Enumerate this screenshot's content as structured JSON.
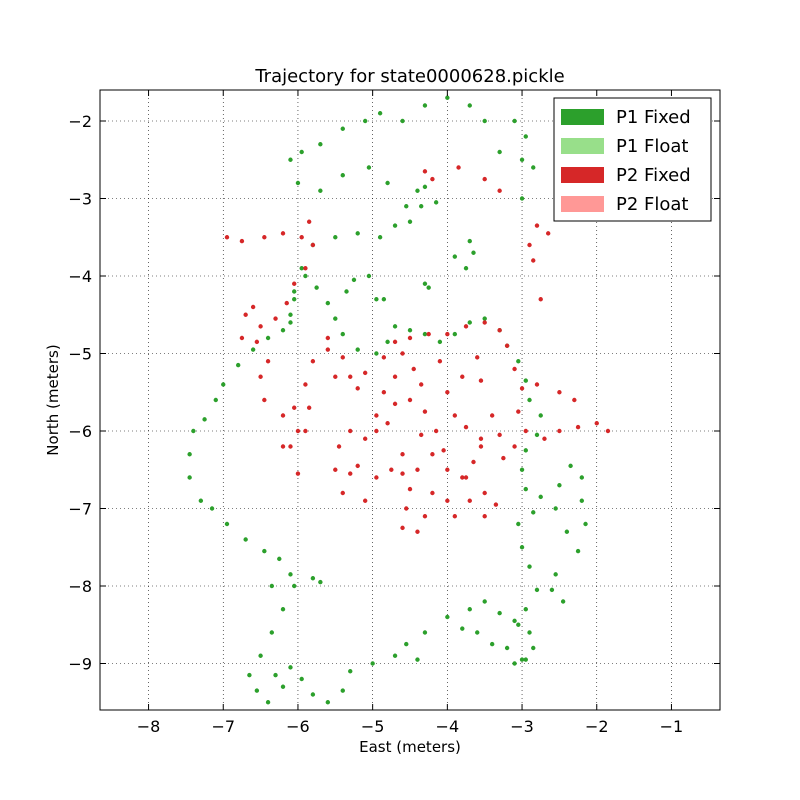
{
  "chart_data": {
    "type": "scatter",
    "title": "Trajectory for state0000628.pickle",
    "xlabel": "East (meters)",
    "ylabel": "North (meters)",
    "xlim": [
      -8.65,
      -0.35
    ],
    "ylim": [
      -9.6,
      -1.6
    ],
    "xticks": [
      -8,
      -7,
      -6,
      -5,
      -4,
      -3,
      -2,
      -1
    ],
    "yticks": [
      -2,
      -3,
      -4,
      -5,
      -6,
      -7,
      -8,
      -9
    ],
    "xtick_labels": [
      "−8",
      "−7",
      "−6",
      "−5",
      "−4",
      "−3",
      "−2",
      "−1"
    ],
    "ytick_labels": [
      "−2",
      "−3",
      "−4",
      "−5",
      "−6",
      "−7",
      "−8",
      "−9"
    ],
    "grid": true,
    "legend_position": "top-right",
    "legend": [
      {
        "label": "P1 Fixed",
        "color": "#2ca02c"
      },
      {
        "label": "P1 Float",
        "color": "#98df8a"
      },
      {
        "label": "P2 Fixed",
        "color": "#d62728"
      },
      {
        "label": "P2 Float",
        "color": "#ff9896"
      }
    ],
    "series": [
      {
        "name": "P1 Fixed",
        "color": "#2ca02c",
        "points": [
          [
            -3.3,
            -2.4
          ],
          [
            -3.0,
            -2.5
          ],
          [
            -2.95,
            -2.2
          ],
          [
            -3.1,
            -2.0
          ],
          [
            -3.5,
            -2.0
          ],
          [
            -3.7,
            -1.8
          ],
          [
            -4.0,
            -1.7
          ],
          [
            -4.3,
            -1.8
          ],
          [
            -4.6,
            -2.0
          ],
          [
            -4.9,
            -1.9
          ],
          [
            -5.1,
            -2.0
          ],
          [
            -5.4,
            -2.1
          ],
          [
            -5.7,
            -2.3
          ],
          [
            -5.95,
            -2.4
          ],
          [
            -6.1,
            -2.5
          ],
          [
            -6.0,
            -2.8
          ],
          [
            -5.7,
            -2.9
          ],
          [
            -5.4,
            -2.7
          ],
          [
            -5.05,
            -2.6
          ],
          [
            -4.8,
            -2.8
          ],
          [
            -4.55,
            -3.1
          ],
          [
            -4.4,
            -2.9
          ],
          [
            -4.3,
            -2.85
          ],
          [
            -4.15,
            -3.05
          ],
          [
            -4.35,
            -3.1
          ],
          [
            -4.5,
            -3.3
          ],
          [
            -4.7,
            -3.35
          ],
          [
            -4.9,
            -3.5
          ],
          [
            -5.2,
            -3.45
          ],
          [
            -5.5,
            -3.5
          ],
          [
            -5.8,
            -3.6
          ],
          [
            -5.95,
            -3.9
          ],
          [
            -6.05,
            -4.3
          ],
          [
            -6.1,
            -4.5
          ],
          [
            -6.2,
            -4.7
          ],
          [
            -6.4,
            -4.8
          ],
          [
            -6.6,
            -4.95
          ],
          [
            -6.8,
            -5.15
          ],
          [
            -7.0,
            -5.4
          ],
          [
            -7.1,
            -5.6
          ],
          [
            -7.25,
            -5.85
          ],
          [
            -7.4,
            -6.0
          ],
          [
            -7.45,
            -6.3
          ],
          [
            -7.45,
            -6.6
          ],
          [
            -7.3,
            -6.9
          ],
          [
            -7.15,
            -7.0
          ],
          [
            -6.95,
            -7.2
          ],
          [
            -6.7,
            -7.4
          ],
          [
            -6.45,
            -7.55
          ],
          [
            -6.25,
            -7.65
          ],
          [
            -6.1,
            -7.85
          ],
          [
            -6.05,
            -8.0
          ],
          [
            -6.2,
            -8.3
          ],
          [
            -6.35,
            -8.6
          ],
          [
            -6.5,
            -8.9
          ],
          [
            -6.65,
            -9.15
          ],
          [
            -6.55,
            -9.35
          ],
          [
            -6.4,
            -9.5
          ],
          [
            -6.2,
            -9.3
          ],
          [
            -6.3,
            -9.15
          ],
          [
            -6.1,
            -9.05
          ],
          [
            -5.95,
            -9.2
          ],
          [
            -5.8,
            -9.4
          ],
          [
            -5.6,
            -9.5
          ],
          [
            -5.4,
            -9.35
          ],
          [
            -5.3,
            -9.1
          ],
          [
            -5.0,
            -9.0
          ],
          [
            -4.7,
            -8.9
          ],
          [
            -4.55,
            -8.75
          ],
          [
            -4.3,
            -8.6
          ],
          [
            -4.0,
            -8.4
          ],
          [
            -3.7,
            -8.3
          ],
          [
            -3.5,
            -8.2
          ],
          [
            -3.3,
            -8.35
          ],
          [
            -3.1,
            -8.45
          ],
          [
            -2.9,
            -8.6
          ],
          [
            -2.85,
            -8.8
          ],
          [
            -3.0,
            -8.95
          ],
          [
            -3.2,
            -8.8
          ],
          [
            -3.05,
            -8.5
          ],
          [
            -2.95,
            -8.3
          ],
          [
            -2.8,
            -8.05
          ],
          [
            -2.6,
            -8.05
          ],
          [
            -2.45,
            -8.2
          ],
          [
            -2.55,
            -7.85
          ],
          [
            -2.9,
            -7.75
          ],
          [
            -3.0,
            -7.5
          ],
          [
            -3.05,
            -7.2
          ],
          [
            -2.85,
            -7.05
          ],
          [
            -2.55,
            -7.0
          ],
          [
            -2.4,
            -7.3
          ],
          [
            -2.25,
            -7.55
          ],
          [
            -2.15,
            -7.2
          ],
          [
            -2.2,
            -6.9
          ],
          [
            -2.2,
            -6.6
          ],
          [
            -2.35,
            -6.45
          ],
          [
            -2.5,
            -6.7
          ],
          [
            -2.75,
            -6.85
          ],
          [
            -2.95,
            -6.75
          ],
          [
            -3.0,
            -6.5
          ],
          [
            -2.95,
            -6.25
          ],
          [
            -2.8,
            -6.05
          ],
          [
            -2.75,
            -5.8
          ],
          [
            -2.9,
            -5.6
          ],
          [
            -2.95,
            -5.35
          ],
          [
            -3.05,
            -5.1
          ],
          [
            -3.2,
            -4.9
          ],
          [
            -3.3,
            -4.7
          ],
          [
            -3.5,
            -4.55
          ],
          [
            -3.7,
            -4.6
          ],
          [
            -3.9,
            -4.75
          ],
          [
            -4.1,
            -4.85
          ],
          [
            -4.3,
            -4.75
          ],
          [
            -4.5,
            -4.7
          ],
          [
            -4.7,
            -4.65
          ],
          [
            -4.8,
            -4.85
          ],
          [
            -4.95,
            -5.0
          ],
          [
            -5.2,
            -4.95
          ],
          [
            -5.4,
            -4.75
          ],
          [
            -5.5,
            -4.55
          ],
          [
            -5.6,
            -4.35
          ],
          [
            -5.75,
            -4.15
          ],
          [
            -5.9,
            -4.0
          ],
          [
            -6.05,
            -4.2
          ],
          [
            -6.1,
            -4.6
          ],
          [
            -5.35,
            -4.2
          ],
          [
            -5.25,
            -4.05
          ],
          [
            -5.05,
            -4.0
          ],
          [
            -4.95,
            -4.3
          ],
          [
            -4.85,
            -4.3
          ],
          [
            -4.3,
            -4.1
          ],
          [
            -4.25,
            -4.15
          ],
          [
            -3.7,
            -3.55
          ],
          [
            -3.65,
            -3.7
          ],
          [
            -3.75,
            -3.9
          ],
          [
            -3.9,
            -3.75
          ],
          [
            -6.35,
            -8.0
          ],
          [
            -5.8,
            -7.9
          ],
          [
            -5.7,
            -7.95
          ],
          [
            -4.4,
            -8.95
          ],
          [
            -3.8,
            -8.55
          ],
          [
            -3.6,
            -8.6
          ],
          [
            -3.4,
            -8.75
          ],
          [
            -3.1,
            -9.0
          ],
          [
            -2.95,
            -8.95
          ],
          [
            -3.0,
            -3.0
          ],
          [
            -2.85,
            -2.6
          ]
        ]
      },
      {
        "name": "P2 Fixed",
        "color": "#d62728",
        "points": [
          [
            -6.95,
            -3.5
          ],
          [
            -6.75,
            -3.55
          ],
          [
            -6.45,
            -3.5
          ],
          [
            -6.2,
            -3.45
          ],
          [
            -5.95,
            -3.5
          ],
          [
            -5.85,
            -3.3
          ],
          [
            -5.8,
            -3.6
          ],
          [
            -5.9,
            -3.9
          ],
          [
            -6.05,
            -4.1
          ],
          [
            -6.15,
            -4.35
          ],
          [
            -6.3,
            -4.55
          ],
          [
            -6.5,
            -4.65
          ],
          [
            -6.6,
            -4.4
          ],
          [
            -6.7,
            -4.5
          ],
          [
            -6.75,
            -4.8
          ],
          [
            -6.55,
            -4.85
          ],
          [
            -6.4,
            -5.1
          ],
          [
            -6.5,
            -5.3
          ],
          [
            -6.45,
            -5.6
          ],
          [
            -6.2,
            -5.8
          ],
          [
            -6.05,
            -5.7
          ],
          [
            -5.9,
            -5.4
          ],
          [
            -5.8,
            -5.1
          ],
          [
            -5.6,
            -4.95
          ],
          [
            -5.4,
            -5.05
          ],
          [
            -5.3,
            -5.3
          ],
          [
            -5.1,
            -5.25
          ],
          [
            -4.85,
            -5.05
          ],
          [
            -4.7,
            -4.85
          ],
          [
            -4.5,
            -4.8
          ],
          [
            -4.25,
            -4.75
          ],
          [
            -4.0,
            -4.75
          ],
          [
            -3.75,
            -4.65
          ],
          [
            -3.5,
            -4.6
          ],
          [
            -3.3,
            -4.7
          ],
          [
            -3.2,
            -4.9
          ],
          [
            -3.1,
            -5.2
          ],
          [
            -3.0,
            -5.45
          ],
          [
            -3.05,
            -5.75
          ],
          [
            -2.95,
            -6.0
          ],
          [
            -2.7,
            -6.1
          ],
          [
            -2.5,
            -6.0
          ],
          [
            -2.25,
            -5.95
          ],
          [
            -2.0,
            -5.9
          ],
          [
            -1.85,
            -6.0
          ],
          [
            -2.3,
            -5.6
          ],
          [
            -2.5,
            -5.5
          ],
          [
            -2.8,
            -5.4
          ],
          [
            -3.4,
            -5.8
          ],
          [
            -3.55,
            -6.1
          ],
          [
            -3.65,
            -6.4
          ],
          [
            -3.8,
            -6.6
          ],
          [
            -4.0,
            -6.5
          ],
          [
            -4.2,
            -6.3
          ],
          [
            -4.35,
            -6.05
          ],
          [
            -4.3,
            -5.75
          ],
          [
            -4.5,
            -5.6
          ],
          [
            -4.7,
            -5.65
          ],
          [
            -4.8,
            -5.9
          ],
          [
            -4.95,
            -6.0
          ],
          [
            -5.1,
            -6.1
          ],
          [
            -5.3,
            -6.0
          ],
          [
            -5.45,
            -6.2
          ],
          [
            -5.5,
            -6.5
          ],
          [
            -5.3,
            -6.55
          ],
          [
            -5.4,
            -6.8
          ],
          [
            -5.1,
            -6.9
          ],
          [
            -4.95,
            -6.6
          ],
          [
            -4.75,
            -6.5
          ],
          [
            -4.6,
            -6.55
          ],
          [
            -4.5,
            -6.75
          ],
          [
            -4.55,
            -7.0
          ],
          [
            -4.6,
            -7.25
          ],
          [
            -4.4,
            -7.3
          ],
          [
            -4.3,
            -7.1
          ],
          [
            -4.2,
            -6.8
          ],
          [
            -4.0,
            -6.9
          ],
          [
            -3.9,
            -7.1
          ],
          [
            -3.7,
            -6.9
          ],
          [
            -3.5,
            -6.8
          ],
          [
            -3.35,
            -6.95
          ],
          [
            -3.5,
            -7.1
          ],
          [
            -3.75,
            -6.6
          ],
          [
            -4.05,
            -6.25
          ],
          [
            -4.15,
            -6.0
          ],
          [
            -4.35,
            -5.4
          ],
          [
            -4.45,
            -5.2
          ],
          [
            -4.6,
            -5.0
          ],
          [
            -4.7,
            -5.3
          ],
          [
            -4.85,
            -5.5
          ],
          [
            -4.95,
            -5.8
          ],
          [
            -5.85,
            -5.7
          ],
          [
            -5.9,
            -6.0
          ],
          [
            -6.1,
            -6.2
          ],
          [
            -6.0,
            -6.55
          ],
          [
            -3.6,
            -5.05
          ],
          [
            -3.55,
            -5.35
          ],
          [
            -3.8,
            -5.3
          ],
          [
            -4.1,
            -5.1
          ],
          [
            -4.0,
            -5.5
          ],
          [
            -3.9,
            -5.8
          ],
          [
            -3.75,
            -5.95
          ],
          [
            -3.55,
            -6.2
          ],
          [
            -3.3,
            -6.05
          ],
          [
            -3.25,
            -6.35
          ],
          [
            -3.1,
            -6.2
          ],
          [
            -2.75,
            -4.3
          ],
          [
            -2.85,
            -3.8
          ],
          [
            -2.9,
            -3.6
          ],
          [
            -2.8,
            -3.35
          ],
          [
            -2.65,
            -3.45
          ],
          [
            -4.3,
            -2.65
          ],
          [
            -4.2,
            -2.75
          ],
          [
            -3.85,
            -2.6
          ],
          [
            -3.5,
            -2.75
          ],
          [
            -3.3,
            -2.9
          ],
          [
            -5.6,
            -4.8
          ],
          [
            -5.5,
            -5.3
          ],
          [
            -5.2,
            -5.45
          ],
          [
            -6.2,
            -6.2
          ],
          [
            -6.0,
            -6.0
          ],
          [
            -5.2,
            -6.45
          ],
          [
            -4.6,
            -6.3
          ],
          [
            -4.4,
            -6.5
          ]
        ]
      }
    ]
  }
}
